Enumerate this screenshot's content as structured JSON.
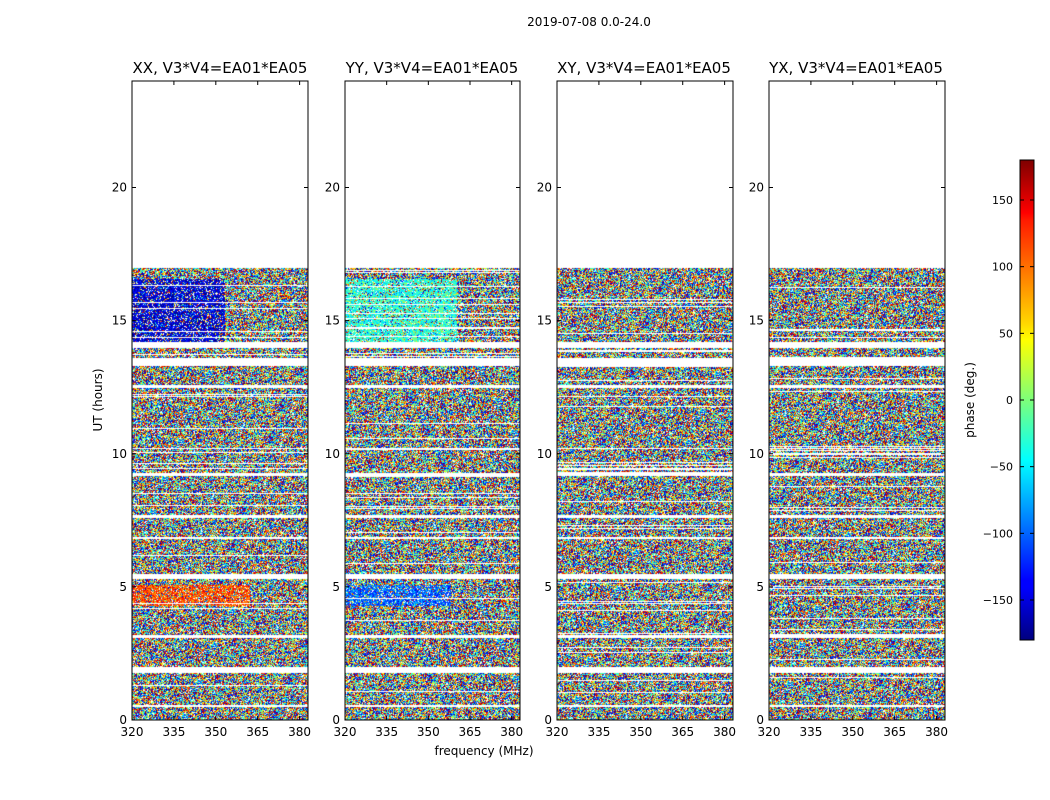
{
  "chart_data": {
    "type": "heatmap",
    "suptitle": "2019-07-08 0.0-24.0",
    "xlabel": "frequency (MHz)",
    "ylabel": "UT (hours)",
    "xlim": [
      320,
      383
    ],
    "ylim": [
      0,
      24
    ],
    "xticks": [
      320,
      335,
      350,
      365,
      380
    ],
    "yticks": [
      0,
      5,
      10,
      15,
      20
    ],
    "data_end_hour": 17,
    "gap_bands_hours": [
      [
        0.5,
        0.6
      ],
      [
        1.8,
        2.0
      ],
      [
        3.1,
        3.2
      ],
      [
        5.3,
        5.5
      ],
      [
        6.8,
        6.9
      ],
      [
        7.6,
        7.7
      ],
      [
        9.2,
        9.3
      ],
      [
        10.2,
        10.25
      ],
      [
        12.5,
        12.6
      ],
      [
        13.3,
        13.6
      ],
      [
        14.0,
        14.2
      ]
    ],
    "panels": [
      {
        "title": "XX, V3*V4=EA01*EA05",
        "coherent_bands": [
          {
            "from": 14.2,
            "to": 16.6,
            "phase": -150,
            "x_to": 353
          },
          {
            "from": 4.3,
            "to": 5.1,
            "phase": 110,
            "x_to": 362
          }
        ]
      },
      {
        "title": "YY, V3*V4=EA01*EA05",
        "coherent_bands": [
          {
            "from": 14.2,
            "to": 16.6,
            "phase": -30,
            "x_to": 360
          },
          {
            "from": 4.3,
            "to": 5.1,
            "phase": -100,
            "x_to": 358
          }
        ]
      },
      {
        "title": "XY, V3*V4=EA01*EA05",
        "coherent_bands": []
      },
      {
        "title": "YX, V3*V4=EA01*EA05",
        "coherent_bands": []
      }
    ],
    "colorbar": {
      "label": "phase (deg.)",
      "range": [
        -180,
        180
      ],
      "ticks": [
        150,
        100,
        50,
        0,
        -50,
        -100,
        -150
      ],
      "tick_labels": [
        "150",
        "100",
        "50",
        "0",
        "−50",
        "−100",
        "−150"
      ],
      "colormap": "jet"
    }
  }
}
